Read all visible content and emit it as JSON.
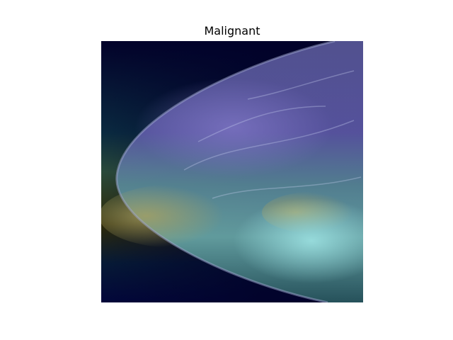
{
  "title": "Malignant"
}
